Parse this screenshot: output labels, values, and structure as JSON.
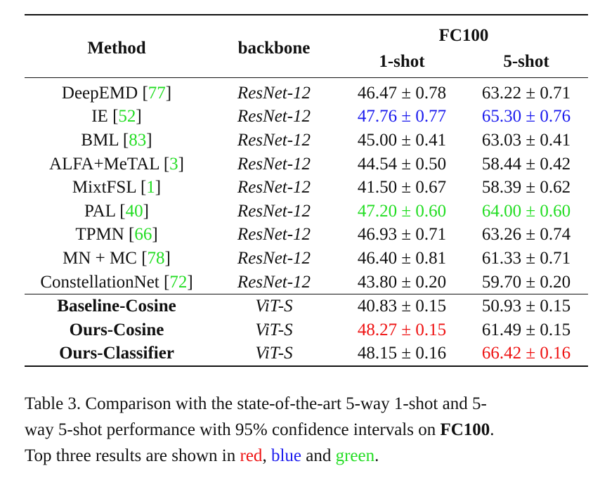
{
  "table": {
    "header": {
      "method": "Method",
      "backbone": "backbone",
      "dataset": "FC100",
      "one_shot": "1-shot",
      "five_shot": "5-shot"
    },
    "rows": [
      {
        "method": "DeepEMD",
        "cite": "77",
        "backbone": "ResNet-12",
        "one_shot": "46.47 ± 0.78",
        "five_shot": "63.22 ± 0.71"
      },
      {
        "method": "IE",
        "cite": "52",
        "backbone": "ResNet-12",
        "one_shot": "47.76 ± 0.77",
        "five_shot": "65.30 ± 0.76"
      },
      {
        "method": "BML",
        "cite": "83",
        "backbone": "ResNet-12",
        "one_shot": "45.00 ± 0.41",
        "five_shot": "63.03 ± 0.41"
      },
      {
        "method": "ALFA+MeTAL",
        "cite": "3",
        "backbone": "ResNet-12",
        "one_shot": "44.54 ± 0.50",
        "five_shot": "58.44 ± 0.42"
      },
      {
        "method": "MixtFSL",
        "cite": "1",
        "backbone": "ResNet-12",
        "one_shot": "41.50 ± 0.67",
        "five_shot": "58.39 ± 0.62"
      },
      {
        "method": "PAL",
        "cite": "40",
        "backbone": "ResNet-12",
        "one_shot": "47.20 ± 0.60",
        "five_shot": "64.00 ± 0.60"
      },
      {
        "method": "TPMN",
        "cite": "66",
        "backbone": "ResNet-12",
        "one_shot": "46.93 ± 0.71",
        "five_shot": "63.26 ± 0.74"
      },
      {
        "method": "MN + MC",
        "cite": "78",
        "backbone": "ResNet-12",
        "one_shot": "46.40 ± 0.81",
        "five_shot": "61.33 ± 0.71"
      },
      {
        "method": "ConstellationNet",
        "cite": "72",
        "backbone": "ResNet-12",
        "one_shot": "43.80 ± 0.20",
        "five_shot": "59.70 ± 0.20"
      },
      {
        "method": "Baseline-Cosine",
        "backbone": "ViT-S",
        "one_shot": "40.83 ± 0.15",
        "five_shot": "50.93 ± 0.15"
      },
      {
        "method": "Ours-Cosine",
        "backbone": "ViT-S",
        "one_shot": "48.27 ± 0.15",
        "five_shot": "61.49 ± 0.15"
      },
      {
        "method": "Ours-Classifier",
        "backbone": "ViT-S",
        "one_shot": "48.15 ± 0.16",
        "five_shot": "66.42 ± 0.16"
      }
    ]
  },
  "caption": {
    "line1": "Table 3. Comparison with the state-of-the-art 5-way 1-shot and 5-",
    "line2_pre": "way 5-shot performance with 95% confidence intervals on ",
    "line2_bold": "FC100",
    "line2_post": ".",
    "line3_pre": "Top three results are shown in ",
    "red_word": "red",
    "sep1": ", ",
    "blue_word": "blue",
    "sep2": " and ",
    "green_word": "green",
    "line3_post": "."
  },
  "colors": {
    "first": "#ee1111",
    "second": "#1a1aee",
    "third": "#22dd22",
    "citation": "#22dd22"
  }
}
